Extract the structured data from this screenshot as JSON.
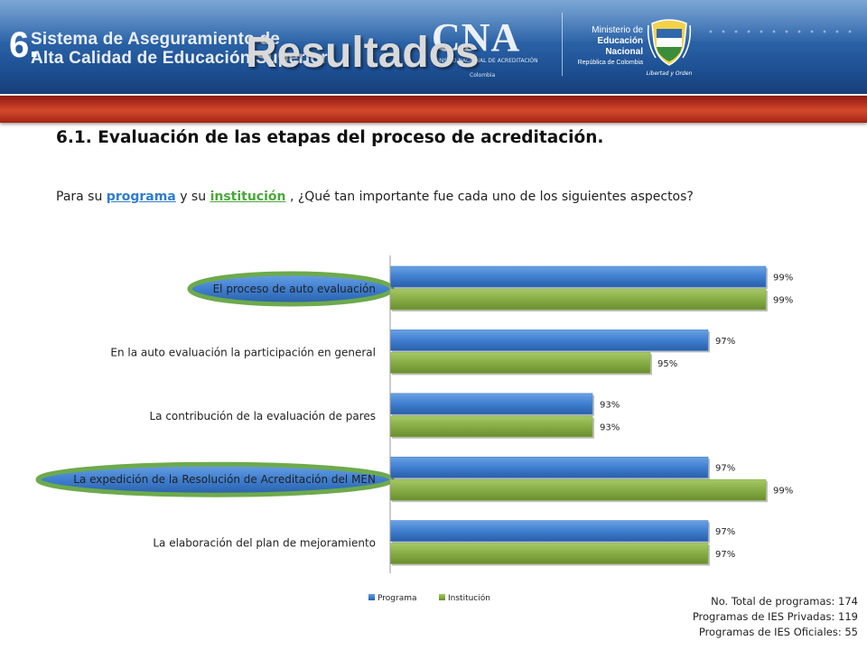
{
  "header": {
    "section_number": "6.",
    "system_name_line1": "Sistema de Aseguramiento de",
    "system_name_line2": "Alta Calidad de Educación Superior",
    "title": "Resultados",
    "cna_logo_text": "CNA",
    "cna_subtitle": "CONSEJO NACIONAL DE ACREDITACIÓN",
    "cna_country": "Colombia",
    "ministry_line1": "Ministerio de",
    "ministry_line2": "Educación Nacional",
    "ministry_line3": "República de Colombia",
    "shield_motto": "Libertad y Orden"
  },
  "page": {
    "subtitle": "6.1. Evaluación de las etapas del proceso de acreditación.",
    "question_prefix": "Para su ",
    "question_kw1": "programa",
    "question_mid": " y su ",
    "question_kw2": "institución",
    "question_suffix": " , ¿Qué tan importante fue cada uno de los siguientes aspectos?"
  },
  "colors": {
    "programa": "#3f7fd0",
    "institucion": "#86ad44",
    "highlight_oval": "#6daa4c"
  },
  "chart_data": {
    "type": "bar",
    "orientation": "horizontal",
    "categories": [
      "El proceso de auto evaluación",
      "En la auto evaluación la participación en general",
      "La contribución de la evaluación de pares",
      "La expedición de la Resolución de Acreditación del MEN",
      "La elaboración del plan de mejoramiento"
    ],
    "highlighted_categories": [
      0,
      3
    ],
    "series": [
      {
        "name": "Programa",
        "values": [
          99,
          97,
          93,
          97,
          97
        ],
        "labels": [
          "99%",
          "97%",
          "93%",
          "97%",
          "97%"
        ]
      },
      {
        "name": "Institución",
        "values": [
          99,
          95,
          93,
          99,
          97
        ],
        "labels": [
          "99%",
          "95%",
          "93%",
          "99%",
          "97%"
        ]
      }
    ],
    "xlim": [
      86,
      100
    ],
    "legend_position": "bottom"
  },
  "footnotes": {
    "total_programas": "No. Total de programas: 174",
    "privadas": "Programas de IES Privadas: 119",
    "oficiales": "Programas de IES Oficiales: 55"
  }
}
